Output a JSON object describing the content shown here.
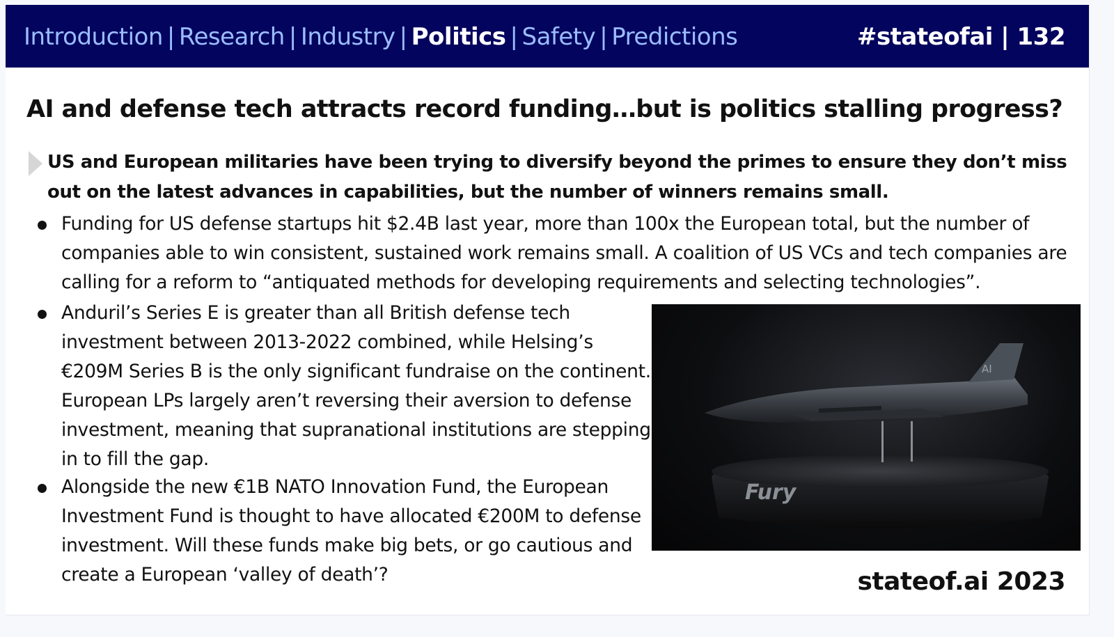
{
  "header": {
    "nav_items": [
      "Introduction",
      "Research",
      "Industry",
      "Politics",
      "Safety",
      "Predictions"
    ],
    "active_item": "Politics",
    "separator": "|",
    "tag": "#stateofai | 132"
  },
  "slide": {
    "title": "AI and defense tech attracts record funding…but is politics stalling progress?",
    "lead": "US and European militaries have been trying to diversify beyond the primes to ensure they don’t miss out on the latest advances in capabilities, but the number of winners remains small.",
    "bullets": [
      "Funding for US defense startups hit $2.4B last year, more than 100x the European total, but the number of companies able to win consistent, sustained work remains small. A coalition of US VCs and tech companies are calling for a reform to “antiquated methods for developing requirements and selecting technologies”.",
      "Anduril’s Series E is greater than all British defense tech investment between 2013-2022 combined, while Helsing’s €209M Series B is the only significant fundraise on the continent. European LPs largely aren’t reversing their aversion to defense investment, meaning that supranational institutions are stepping in to fill the gap.",
      "Alongside the new €1B NATO Innovation Fund, the European Investment Fund is thought to have allocated €200M to defense investment. Will these funds make big bets, or go cautious and create a European ‘valley of death’?"
    ]
  },
  "image": {
    "stand_label": "Fury",
    "tail_marking": "AI",
    "colors": {
      "background": "#0b0c0e",
      "aircraft": "#3d4248",
      "stand": "#141518"
    }
  },
  "footer": {
    "brand": "stateof.ai 2023"
  },
  "colors": {
    "topbar": "#03045e",
    "nav_text": "#9bbcff",
    "nav_active": "#ffffff"
  }
}
